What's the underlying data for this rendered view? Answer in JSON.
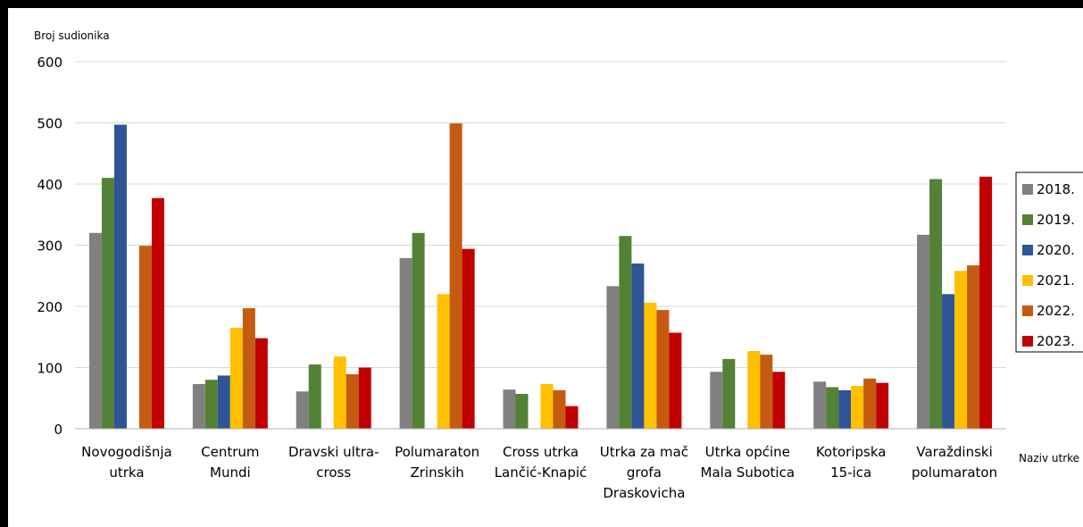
{
  "chart_data": {
    "type": "bar",
    "title": "",
    "ylabel": "Broj sudionika",
    "xlabel": "Naziv utrke",
    "ylim": [
      0,
      600
    ],
    "yticks": [
      0,
      100,
      200,
      300,
      400,
      500,
      600
    ],
    "grid": true,
    "legend_position": "right",
    "categories": [
      [
        "Novogodišnja",
        "utrka"
      ],
      [
        "Centrum",
        "Mundi"
      ],
      [
        "Dravski ultra-",
        "cross"
      ],
      [
        "Polumaraton",
        "Zrinskih"
      ],
      [
        "Cross utrka",
        "Lančić-Knapić"
      ],
      [
        "Utrka za mač",
        "grofa",
        "Draskovicha"
      ],
      [
        "Utrka općine",
        "Mala Subotica"
      ],
      [
        "Kotoripska",
        "15-ica"
      ],
      [
        "Varaždinski",
        "polumaraton"
      ]
    ],
    "series": [
      {
        "name": "2018.",
        "color": "#808080",
        "values": [
          320,
          73,
          61,
          279,
          64,
          233,
          93,
          77,
          317
        ]
      },
      {
        "name": "2019.",
        "color": "#538135",
        "values": [
          410,
          80,
          105,
          320,
          57,
          315,
          114,
          68,
          408
        ]
      },
      {
        "name": "2020.",
        "color": "#2f5597",
        "values": [
          497,
          87,
          null,
          null,
          null,
          270,
          null,
          63,
          220
        ]
      },
      {
        "name": "2021.",
        "color": "#ffc000",
        "values": [
          null,
          165,
          118,
          220,
          73,
          206,
          127,
          70,
          258
        ]
      },
      {
        "name": "2022.",
        "color": "#c55a11",
        "values": [
          299,
          197,
          89,
          499,
          63,
          194,
          121,
          82,
          267
        ]
      },
      {
        "name": "2023.",
        "color": "#c00000",
        "values": [
          377,
          148,
          100,
          294,
          37,
          157,
          93,
          75,
          412
        ]
      }
    ]
  }
}
